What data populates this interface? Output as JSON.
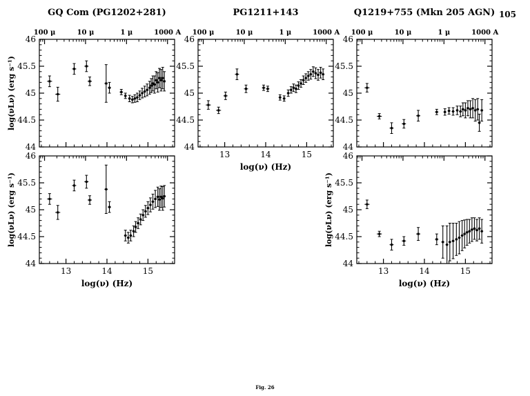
{
  "page": {
    "number": "105",
    "caption": "Fig. 26"
  },
  "chart_data": {
    "type": "scatter",
    "marker": "cross-errorbar",
    "color": "#000000",
    "xlabel": "log(ν) (Hz)",
    "ylabel": "log(νLν) (erg s⁻¹)",
    "xlim": [
      12.35,
      15.65
    ],
    "ylim": [
      44,
      46
    ],
    "xticks": [
      13,
      14,
      15
    ],
    "yticks": [
      44,
      44.5,
      45,
      45.5,
      46
    ],
    "top_axis": {
      "unit_labels": [
        "100 μ",
        "10 μ",
        "1 μ",
        "1000 A"
      ],
      "tick_positions": [
        12.477,
        13.477,
        14.477,
        15.477
      ]
    },
    "panels": [
      {
        "name": "gq-com-upper",
        "title": "GQ Com (PG1202+281)",
        "show_top_labels": true,
        "show_x_tick_labels": false,
        "show_xlabel": false,
        "show_ylabel": true,
        "points": [
          [
            12.6,
            45.22,
            0.06,
            0.1
          ],
          [
            12.8,
            44.98,
            0.06,
            0.13
          ],
          [
            13.2,
            45.45,
            0.05,
            0.1
          ],
          [
            13.5,
            45.5,
            0.05,
            0.1
          ],
          [
            13.58,
            45.22,
            0.05,
            0.08
          ],
          [
            13.98,
            45.18,
            0.04,
            0.35
          ],
          [
            14.06,
            45.1,
            0.04,
            0.1
          ],
          [
            14.35,
            45.02,
            0.04,
            0.05
          ],
          [
            14.45,
            44.95,
            0.03,
            0.05
          ],
          [
            14.55,
            44.9,
            0.03,
            0.06
          ],
          [
            14.62,
            44.88,
            0.03,
            0.06
          ],
          [
            14.68,
            44.9,
            0.02,
            0.07
          ],
          [
            14.74,
            44.92,
            0.02,
            0.08
          ],
          [
            14.8,
            44.96,
            0.02,
            0.08
          ],
          [
            14.86,
            45.0,
            0.02,
            0.09
          ],
          [
            14.92,
            45.03,
            0.02,
            0.1
          ],
          [
            14.98,
            45.06,
            0.02,
            0.11
          ],
          [
            15.04,
            45.1,
            0.02,
            0.12
          ],
          [
            15.08,
            45.14,
            0.02,
            0.13
          ],
          [
            15.12,
            45.18,
            0.02,
            0.14
          ],
          [
            15.16,
            45.16,
            0.02,
            0.16
          ],
          [
            15.2,
            45.24,
            0.02,
            0.16
          ],
          [
            15.24,
            45.2,
            0.02,
            0.18
          ],
          [
            15.28,
            45.28,
            0.02,
            0.18
          ],
          [
            15.32,
            45.24,
            0.02,
            0.2
          ],
          [
            15.36,
            45.28,
            0.02,
            0.2
          ],
          [
            15.4,
            45.22,
            0.02,
            0.18
          ]
        ]
      },
      {
        "name": "pg1211-upper",
        "title": "PG1211+143",
        "show_top_labels": true,
        "show_x_tick_labels": true,
        "show_xlabel": true,
        "show_ylabel": false,
        "points": [
          [
            12.6,
            44.78,
            0.06,
            0.08
          ],
          [
            12.85,
            44.68,
            0.06,
            0.06
          ],
          [
            13.02,
            44.95,
            0.05,
            0.07
          ],
          [
            13.3,
            45.35,
            0.05,
            0.1
          ],
          [
            13.52,
            45.08,
            0.05,
            0.07
          ],
          [
            13.95,
            45.1,
            0.04,
            0.05
          ],
          [
            14.05,
            45.08,
            0.04,
            0.05
          ],
          [
            14.35,
            44.92,
            0.03,
            0.05
          ],
          [
            14.45,
            44.9,
            0.03,
            0.05
          ],
          [
            14.55,
            45.0,
            0.03,
            0.06
          ],
          [
            14.62,
            45.06,
            0.02,
            0.06
          ],
          [
            14.68,
            45.1,
            0.02,
            0.07
          ],
          [
            14.74,
            45.08,
            0.02,
            0.07
          ],
          [
            14.8,
            45.14,
            0.02,
            0.07
          ],
          [
            14.86,
            45.18,
            0.02,
            0.07
          ],
          [
            14.92,
            45.24,
            0.02,
            0.08
          ],
          [
            14.98,
            45.28,
            0.02,
            0.08
          ],
          [
            15.04,
            45.32,
            0.02,
            0.08
          ],
          [
            15.1,
            45.35,
            0.02,
            0.09
          ],
          [
            15.16,
            45.4,
            0.02,
            0.09
          ],
          [
            15.22,
            45.37,
            0.02,
            0.1
          ],
          [
            15.28,
            45.34,
            0.02,
            0.1
          ],
          [
            15.34,
            45.38,
            0.02,
            0.1
          ],
          [
            15.4,
            45.35,
            0.02,
            0.1
          ]
        ]
      },
      {
        "name": "q1219-upper",
        "title": "Q1219+755 (Mkn 205 AGN)",
        "show_top_labels": true,
        "show_x_tick_labels": false,
        "show_xlabel": false,
        "show_ylabel": false,
        "points": [
          [
            12.6,
            45.1,
            0.06,
            0.08
          ],
          [
            12.9,
            44.57,
            0.06,
            0.05
          ],
          [
            13.2,
            44.35,
            0.05,
            0.1
          ],
          [
            13.5,
            44.43,
            0.05,
            0.08
          ],
          [
            13.85,
            44.58,
            0.05,
            0.1
          ],
          [
            14.3,
            44.65,
            0.04,
            0.05
          ],
          [
            14.5,
            44.65,
            0.03,
            0.06
          ],
          [
            14.6,
            44.67,
            0.03,
            0.06
          ],
          [
            14.7,
            44.66,
            0.02,
            0.07
          ],
          [
            14.8,
            44.68,
            0.02,
            0.08
          ],
          [
            14.88,
            44.66,
            0.02,
            0.1
          ],
          [
            14.94,
            44.7,
            0.02,
            0.12
          ],
          [
            15.0,
            44.68,
            0.02,
            0.14
          ],
          [
            15.06,
            44.72,
            0.02,
            0.14
          ],
          [
            15.12,
            44.7,
            0.02,
            0.16
          ],
          [
            15.18,
            44.72,
            0.02,
            0.18
          ],
          [
            15.24,
            44.68,
            0.02,
            0.2
          ],
          [
            15.3,
            44.7,
            0.02,
            0.2
          ],
          [
            15.34,
            44.45,
            0.02,
            0.16
          ],
          [
            15.4,
            44.68,
            0.02,
            0.2
          ]
        ]
      },
      {
        "name": "gq-com-lower",
        "title": "",
        "show_top_labels": false,
        "show_x_tick_labels": true,
        "show_xlabel": true,
        "show_ylabel": true,
        "points": [
          [
            12.6,
            45.2,
            0.06,
            0.1
          ],
          [
            12.8,
            44.95,
            0.06,
            0.13
          ],
          [
            13.2,
            45.45,
            0.05,
            0.1
          ],
          [
            13.5,
            45.52,
            0.05,
            0.12
          ],
          [
            13.58,
            45.18,
            0.05,
            0.08
          ],
          [
            13.98,
            45.38,
            0.04,
            0.45
          ],
          [
            14.06,
            45.05,
            0.04,
            0.1
          ],
          [
            14.45,
            44.52,
            0.03,
            0.1
          ],
          [
            14.52,
            44.48,
            0.03,
            0.1
          ],
          [
            14.58,
            44.52,
            0.03,
            0.1
          ],
          [
            14.65,
            44.6,
            0.02,
            0.1
          ],
          [
            14.7,
            44.68,
            0.02,
            0.1
          ],
          [
            14.76,
            44.75,
            0.02,
            0.1
          ],
          [
            14.82,
            44.82,
            0.02,
            0.1
          ],
          [
            14.88,
            44.9,
            0.02,
            0.1
          ],
          [
            14.94,
            44.97,
            0.02,
            0.11
          ],
          [
            15.0,
            45.03,
            0.02,
            0.12
          ],
          [
            15.06,
            45.09,
            0.02,
            0.13
          ],
          [
            15.12,
            45.15,
            0.02,
            0.14
          ],
          [
            15.18,
            45.2,
            0.02,
            0.16
          ],
          [
            15.24,
            45.24,
            0.02,
            0.18
          ],
          [
            15.28,
            45.19,
            0.02,
            0.2
          ],
          [
            15.32,
            45.24,
            0.02,
            0.2
          ],
          [
            15.36,
            45.21,
            0.02,
            0.22
          ],
          [
            15.4,
            45.25,
            0.02,
            0.2
          ]
        ]
      },
      {
        "name": "q1219-lower",
        "title": "",
        "show_top_labels": false,
        "show_x_tick_labels": true,
        "show_xlabel": true,
        "show_ylabel": true,
        "points": [
          [
            12.6,
            45.1,
            0.06,
            0.08
          ],
          [
            12.9,
            44.55,
            0.06,
            0.05
          ],
          [
            13.2,
            44.35,
            0.05,
            0.1
          ],
          [
            13.5,
            44.42,
            0.05,
            0.08
          ],
          [
            13.85,
            44.55,
            0.05,
            0.12
          ],
          [
            14.3,
            44.45,
            0.04,
            0.1
          ],
          [
            14.45,
            44.4,
            0.03,
            0.3
          ],
          [
            14.55,
            44.35,
            0.03,
            0.35
          ],
          [
            14.62,
            44.4,
            0.02,
            0.35
          ],
          [
            14.7,
            44.42,
            0.02,
            0.33
          ],
          [
            14.78,
            44.45,
            0.02,
            0.3
          ],
          [
            14.85,
            44.48,
            0.02,
            0.3
          ],
          [
            14.92,
            44.52,
            0.02,
            0.28
          ],
          [
            14.98,
            44.55,
            0.02,
            0.26
          ],
          [
            15.04,
            44.58,
            0.02,
            0.24
          ],
          [
            15.1,
            44.6,
            0.02,
            0.22
          ],
          [
            15.16,
            44.63,
            0.02,
            0.22
          ],
          [
            15.22,
            44.65,
            0.02,
            0.2
          ],
          [
            15.28,
            44.62,
            0.02,
            0.2
          ],
          [
            15.34,
            44.65,
            0.02,
            0.2
          ],
          [
            15.4,
            44.6,
            0.02,
            0.22
          ]
        ]
      }
    ]
  }
}
